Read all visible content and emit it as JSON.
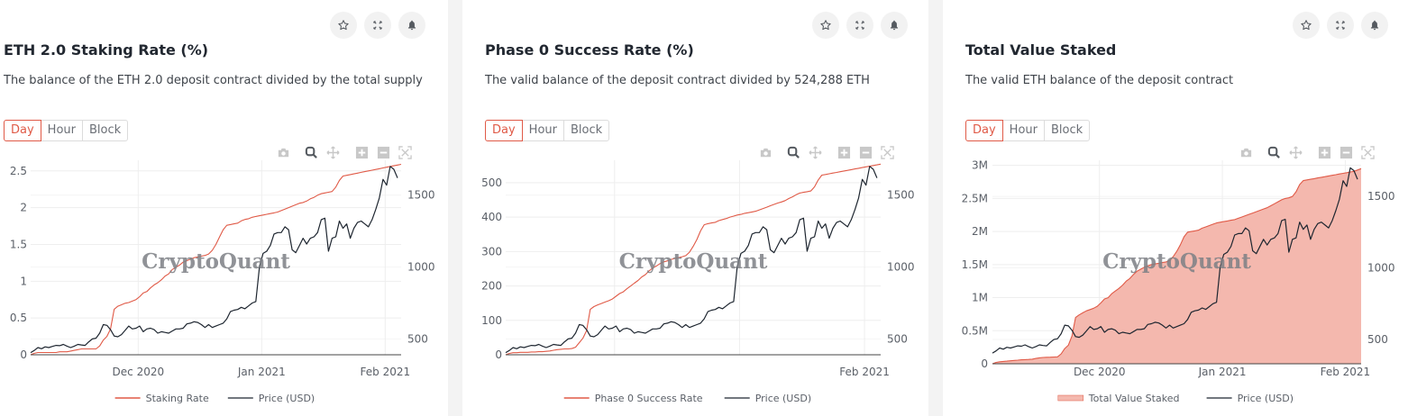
{
  "colors": {
    "accent": "#e05a47",
    "price_line": "#1e2630",
    "area_fill": "#f4b8ae",
    "grid": "#eeeeee"
  },
  "actions": [
    {
      "name": "favorite",
      "icon": "star-icon"
    },
    {
      "name": "fullscreen",
      "icon": "expand-icon"
    },
    {
      "name": "alert",
      "icon": "bell-icon"
    }
  ],
  "modebar": [
    "camera-icon",
    "zoom-icon",
    "pan-icon",
    "zoom-in-icon",
    "zoom-out-icon",
    "autoscale-icon"
  ],
  "watermark": "CryptoQuant",
  "panels": [
    {
      "title": "ETH 2.0 Staking Rate (%)",
      "description": "The balance of the ETH 2.0 deposit contract divided by the total supply",
      "intervals": [
        "Day",
        "Hour",
        "Block"
      ],
      "active_interval": "Day",
      "legend": [
        "Staking Rate",
        "Price (USD)"
      ]
    },
    {
      "title": "Phase 0 Success Rate (%)",
      "description": "The valid balance of the deposit contract divided by 524,288 ETH",
      "intervals": [
        "Day",
        "Hour",
        "Block"
      ],
      "active_interval": "Day",
      "legend": [
        "Phase 0 Success Rate",
        "Price (USD)"
      ]
    },
    {
      "title": "Total Value Staked",
      "description": "The valid ETH balance of the deposit contract",
      "intervals": [
        "Day",
        "Hour",
        "Block"
      ],
      "active_interval": "Day",
      "legend": [
        "Total Value Staked",
        "Price (USD)"
      ]
    }
  ],
  "chart_data": [
    {
      "type": "line",
      "title": "ETH 2.0 Staking Rate (%)",
      "x_ticks": [
        "Dec 2020",
        "Jan 2021",
        "Feb 2021"
      ],
      "y_ticks": [
        "0",
        "0.5",
        "1",
        "1.5",
        "2",
        "2.5"
      ],
      "y_tick_values": [
        0,
        0.5,
        1,
        1.5,
        2,
        2.5
      ],
      "ylim": [
        0,
        2.62
      ],
      "y2_ticks": [
        "500",
        "1000",
        "1500"
      ],
      "y2_tick_values": [
        500,
        1000,
        1500
      ],
      "y2lim": [
        390,
        1730
      ],
      "x_start": "2020-11-04",
      "x_end": "2021-02-05",
      "grid": true,
      "legend_position": "bottom",
      "series": [
        {
          "name": "Staking Rate",
          "axis": "y",
          "style": "line",
          "values": [
            0,
            0.02,
            0.03,
            0.03,
            0.03,
            0.03,
            0.03,
            0.03,
            0.04,
            0.04,
            0.04,
            0.05,
            0.06,
            0.07,
            0.08,
            0.08,
            0.08,
            0.08,
            0.08,
            0.12,
            0.2,
            0.25,
            0.35,
            0.62,
            0.66,
            0.68,
            0.7,
            0.71,
            0.73,
            0.75,
            0.79,
            0.84,
            0.86,
            0.91,
            0.95,
            0.98,
            1.02,
            1.07,
            1.1,
            1.16,
            1.19,
            1.22,
            1.26,
            1.28,
            1.3,
            1.32,
            1.33,
            1.34,
            1.35,
            1.37,
            1.42,
            1.5,
            1.6,
            1.7,
            1.76,
            1.77,
            1.78,
            1.79,
            1.82,
            1.84,
            1.85,
            1.87,
            1.88,
            1.89,
            1.9,
            1.91,
            1.92,
            1.93,
            1.94,
            1.96,
            1.98,
            2,
            2.02,
            2.04,
            2.06,
            2.07,
            2.09,
            2.12,
            2.14,
            2.17,
            2.19,
            2.2,
            2.21,
            2.22,
            2.28,
            2.37,
            2.43,
            2.44,
            2.45,
            2.46,
            2.47,
            2.48,
            2.49,
            2.5,
            2.51,
            2.52,
            2.53,
            2.54,
            2.55,
            2.56,
            2.57,
            2.58,
            2.59
          ]
        },
        {
          "name": "Price (USD)",
          "axis": "y2",
          "style": "line",
          "values": [
            405,
            420,
            440,
            432,
            445,
            440,
            448,
            455,
            453,
            462,
            450,
            440,
            450,
            462,
            458,
            455,
            480,
            500,
            505,
            540,
            600,
            595,
            565,
            520,
            515,
            530,
            560,
            590,
            570,
            575,
            590,
            550,
            570,
            575,
            565,
            540,
            550,
            545,
            540,
            555,
            570,
            570,
            575,
            605,
            610,
            620,
            615,
            600,
            580,
            600,
            580,
            590,
            600,
            610,
            640,
            690,
            700,
            705,
            720,
            710,
            730,
            750,
            760,
            1005,
            1095,
            1110,
            1150,
            1230,
            1240,
            1240,
            1280,
            1260,
            1120,
            1100,
            1150,
            1200,
            1160,
            1200,
            1210,
            1240,
            1330,
            1340,
            1110,
            1200,
            1210,
            1320,
            1270,
            1300,
            1200,
            1270,
            1310,
            1320,
            1300,
            1280,
            1330,
            1400,
            1480,
            1610,
            1570,
            1700,
            1680,
            1620
          ]
        }
      ]
    },
    {
      "type": "line",
      "title": "Phase 0 Success Rate (%)",
      "x_ticks": [
        "Dec 2020",
        "Jan 2021",
        "Feb 2021"
      ],
      "x_ticks_visible": [
        "Feb 2021"
      ],
      "y_ticks": [
        "0",
        "100",
        "200",
        "300",
        "400",
        "500"
      ],
      "y_tick_values": [
        0,
        100,
        200,
        300,
        400,
        500
      ],
      "ylim": [
        0,
        560
      ],
      "y2_ticks": [
        "500",
        "1000",
        "1500"
      ],
      "y2_tick_values": [
        500,
        1000,
        1500
      ],
      "y2lim": [
        390,
        1730
      ],
      "x_start": "2020-11-04",
      "x_end": "2021-02-05",
      "grid": true,
      "legend_position": "bottom",
      "series": [
        {
          "name": "Phase 0 Success Rate",
          "axis": "y",
          "style": "line",
          "values": [
            0,
            4,
            6,
            6,
            7,
            7,
            7,
            8,
            8,
            9,
            9,
            10,
            11,
            13,
            15,
            16,
            17,
            17,
            18,
            22,
            35,
            48,
            70,
            132,
            140,
            145,
            149,
            153,
            157,
            162,
            170,
            178,
            183,
            192,
            200,
            208,
            216,
            226,
            233,
            244,
            252,
            258,
            265,
            270,
            273,
            277,
            280,
            282,
            285,
            288,
            298,
            315,
            335,
            360,
            378,
            381,
            383,
            385,
            390,
            393,
            396,
            400,
            403,
            406,
            408,
            411,
            413,
            415,
            417,
            421,
            425,
            429,
            433,
            437,
            441,
            444,
            448,
            454,
            459,
            465,
            470,
            472,
            474,
            476,
            488,
            508,
            522,
            524,
            526,
            528,
            530,
            532,
            534,
            536,
            538,
            540,
            542,
            544,
            546,
            548,
            550,
            552,
            554
          ]
        },
        {
          "name": "Price (USD)",
          "axis": "y2",
          "style": "line",
          "values": [
            405,
            420,
            440,
            432,
            445,
            440,
            448,
            455,
            453,
            462,
            450,
            440,
            450,
            462,
            458,
            455,
            480,
            500,
            505,
            540,
            600,
            595,
            565,
            520,
            515,
            530,
            560,
            590,
            570,
            575,
            590,
            550,
            570,
            575,
            565,
            540,
            550,
            545,
            540,
            555,
            570,
            570,
            575,
            605,
            610,
            620,
            615,
            600,
            580,
            600,
            580,
            590,
            600,
            610,
            640,
            690,
            700,
            705,
            720,
            710,
            730,
            750,
            760,
            1005,
            1095,
            1110,
            1150,
            1230,
            1240,
            1240,
            1280,
            1260,
            1120,
            1100,
            1150,
            1200,
            1160,
            1200,
            1210,
            1240,
            1330,
            1340,
            1110,
            1200,
            1210,
            1320,
            1270,
            1300,
            1200,
            1270,
            1310,
            1320,
            1300,
            1280,
            1330,
            1400,
            1480,
            1610,
            1570,
            1700,
            1680,
            1620
          ]
        }
      ]
    },
    {
      "type": "area",
      "title": "Total Value Staked",
      "x_ticks": [
        "Dec 2020",
        "Jan 2021",
        "Feb 2021"
      ],
      "y_ticks": [
        "0",
        "0.5M",
        "1M",
        "1.5M",
        "2M",
        "2.5M",
        "3M"
      ],
      "y_tick_values": [
        0,
        500000,
        1000000,
        1500000,
        2000000,
        2500000,
        3000000
      ],
      "ylim": [
        0,
        3050000
      ],
      "y2_ticks": [
        "500",
        "1000",
        "1500"
      ],
      "y2_tick_values": [
        500,
        1000,
        1500
      ],
      "y2lim": [
        330,
        1740
      ],
      "x_start": "2020-11-04",
      "x_end": "2021-02-05",
      "grid": true,
      "legend_position": "bottom",
      "series": [
        {
          "name": "Total Value Staked",
          "axis": "y",
          "style": "area",
          "values": [
            0,
            20000,
            30000,
            35000,
            40000,
            45000,
            50000,
            55000,
            60000,
            62000,
            65000,
            70000,
            80000,
            90000,
            95000,
            98000,
            100000,
            102000,
            105000,
            150000,
            230000,
            280000,
            420000,
            700000,
            740000,
            770000,
            800000,
            820000,
            840000,
            870000,
            920000,
            980000,
            1000000,
            1060000,
            1100000,
            1140000,
            1190000,
            1250000,
            1290000,
            1350000,
            1400000,
            1430000,
            1460000,
            1480000,
            1500000,
            1510000,
            1520000,
            1530000,
            1540000,
            1560000,
            1620000,
            1700000,
            1800000,
            1920000,
            1990000,
            2000000,
            2010000,
            2020000,
            2050000,
            2070000,
            2090000,
            2110000,
            2130000,
            2140000,
            2150000,
            2160000,
            2170000,
            2180000,
            2200000,
            2220000,
            2240000,
            2260000,
            2280000,
            2300000,
            2320000,
            2340000,
            2360000,
            2390000,
            2420000,
            2450000,
            2480000,
            2500000,
            2510000,
            2530000,
            2600000,
            2710000,
            2770000,
            2780000,
            2790000,
            2800000,
            2810000,
            2820000,
            2830000,
            2840000,
            2850000,
            2860000,
            2870000,
            2880000,
            2890000,
            2900000,
            2910000,
            2930000,
            2950000
          ]
        },
        {
          "name": "Price (USD)",
          "axis": "y2",
          "style": "line",
          "values": [
            405,
            420,
            440,
            432,
            445,
            440,
            448,
            455,
            453,
            462,
            450,
            440,
            450,
            462,
            458,
            455,
            480,
            500,
            505,
            540,
            600,
            595,
            565,
            520,
            515,
            530,
            560,
            590,
            570,
            575,
            590,
            550,
            570,
            575,
            565,
            540,
            550,
            545,
            540,
            555,
            570,
            570,
            575,
            605,
            610,
            620,
            615,
            600,
            580,
            600,
            580,
            590,
            600,
            610,
            640,
            690,
            700,
            705,
            720,
            710,
            730,
            750,
            760,
            1005,
            1095,
            1110,
            1150,
            1230,
            1240,
            1240,
            1280,
            1260,
            1120,
            1100,
            1150,
            1200,
            1160,
            1200,
            1210,
            1240,
            1330,
            1340,
            1110,
            1200,
            1210,
            1320,
            1270,
            1300,
            1200,
            1270,
            1310,
            1320,
            1300,
            1280,
            1330,
            1400,
            1480,
            1610,
            1570,
            1700,
            1680,
            1620
          ]
        }
      ]
    }
  ]
}
